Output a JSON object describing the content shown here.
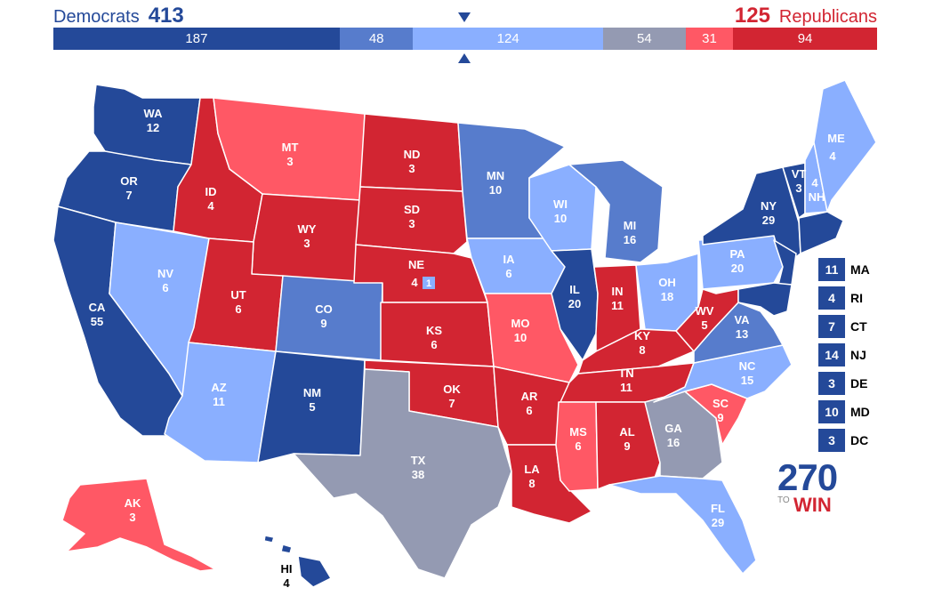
{
  "totals": {
    "dem_label": "Democrats",
    "dem_total": "413",
    "rep_label": "Republicans",
    "rep_total": "125"
  },
  "bar": [
    {
      "value": 187,
      "label": "187",
      "color": "#244999"
    },
    {
      "value": 48,
      "label": "48",
      "color": "#577ccc"
    },
    {
      "value": 124,
      "label": "124",
      "color": "#8aafff"
    },
    {
      "value": 54,
      "label": "54",
      "color": "#949ab2"
    },
    {
      "value": 31,
      "label": "31",
      "color": "#ff5865"
    },
    {
      "value": 94,
      "label": "94",
      "color": "#d22532"
    }
  ],
  "colors": {
    "safe_dem": "#244999",
    "likely_dem": "#577ccc",
    "lean_dem": "#8aafff",
    "tossup": "#949ab2",
    "lean_rep": "#ff5865",
    "safe_rep": "#d22532"
  },
  "states": {
    "WA": {
      "abbr": "WA",
      "ev": "12"
    },
    "OR": {
      "abbr": "OR",
      "ev": "7"
    },
    "CA": {
      "abbr": "CA",
      "ev": "55"
    },
    "NV": {
      "abbr": "NV",
      "ev": "6"
    },
    "ID": {
      "abbr": "ID",
      "ev": "4"
    },
    "MT": {
      "abbr": "MT",
      "ev": "3"
    },
    "WY": {
      "abbr": "WY",
      "ev": "3"
    },
    "UT": {
      "abbr": "UT",
      "ev": "6"
    },
    "AZ": {
      "abbr": "AZ",
      "ev": "11"
    },
    "CO": {
      "abbr": "CO",
      "ev": "9"
    },
    "NM": {
      "abbr": "NM",
      "ev": "5"
    },
    "ND": {
      "abbr": "ND",
      "ev": "3"
    },
    "SD": {
      "abbr": "SD",
      "ev": "3"
    },
    "NE": {
      "abbr": "NE",
      "ev": "4",
      "district": "1"
    },
    "KS": {
      "abbr": "KS",
      "ev": "6"
    },
    "OK": {
      "abbr": "OK",
      "ev": "7"
    },
    "TX": {
      "abbr": "TX",
      "ev": "38"
    },
    "MN": {
      "abbr": "MN",
      "ev": "10"
    },
    "IA": {
      "abbr": "IA",
      "ev": "6"
    },
    "MO": {
      "abbr": "MO",
      "ev": "10"
    },
    "AR": {
      "abbr": "AR",
      "ev": "6"
    },
    "LA": {
      "abbr": "LA",
      "ev": "8"
    },
    "WI": {
      "abbr": "WI",
      "ev": "10"
    },
    "IL": {
      "abbr": "IL",
      "ev": "20"
    },
    "MI": {
      "abbr": "MI",
      "ev": "16"
    },
    "IN": {
      "abbr": "IN",
      "ev": "11"
    },
    "OH": {
      "abbr": "OH",
      "ev": "18"
    },
    "KY": {
      "abbr": "KY",
      "ev": "8"
    },
    "TN": {
      "abbr": "TN",
      "ev": "11"
    },
    "MS": {
      "abbr": "MS",
      "ev": "6"
    },
    "AL": {
      "abbr": "AL",
      "ev": "9"
    },
    "GA": {
      "abbr": "GA",
      "ev": "16"
    },
    "FL": {
      "abbr": "FL",
      "ev": "29"
    },
    "SC": {
      "abbr": "SC",
      "ev": "9"
    },
    "NC": {
      "abbr": "NC",
      "ev": "15"
    },
    "VA": {
      "abbr": "VA",
      "ev": "13"
    },
    "WV": {
      "abbr": "WV",
      "ev": "5"
    },
    "PA": {
      "abbr": "PA",
      "ev": "20"
    },
    "NY": {
      "abbr": "NY",
      "ev": "29"
    },
    "VT": {
      "abbr": "VT",
      "ev": "3"
    },
    "NH": {
      "abbr": "NH",
      "ev": "4"
    },
    "ME": {
      "abbr": "ME",
      "ev": "4"
    },
    "AK": {
      "abbr": "AK",
      "ev": "3"
    },
    "HI": {
      "abbr": "HI",
      "ev": "4"
    }
  },
  "small_states": [
    {
      "ev": "11",
      "abbr": "MA"
    },
    {
      "ev": "4",
      "abbr": "RI"
    },
    {
      "ev": "7",
      "abbr": "CT"
    },
    {
      "ev": "14",
      "abbr": "NJ"
    },
    {
      "ev": "3",
      "abbr": "DE"
    },
    {
      "ev": "10",
      "abbr": "MD"
    },
    {
      "ev": "3",
      "abbr": "DC"
    }
  ],
  "logo": {
    "number": "270",
    "to": "TO",
    "win": "WIN"
  }
}
